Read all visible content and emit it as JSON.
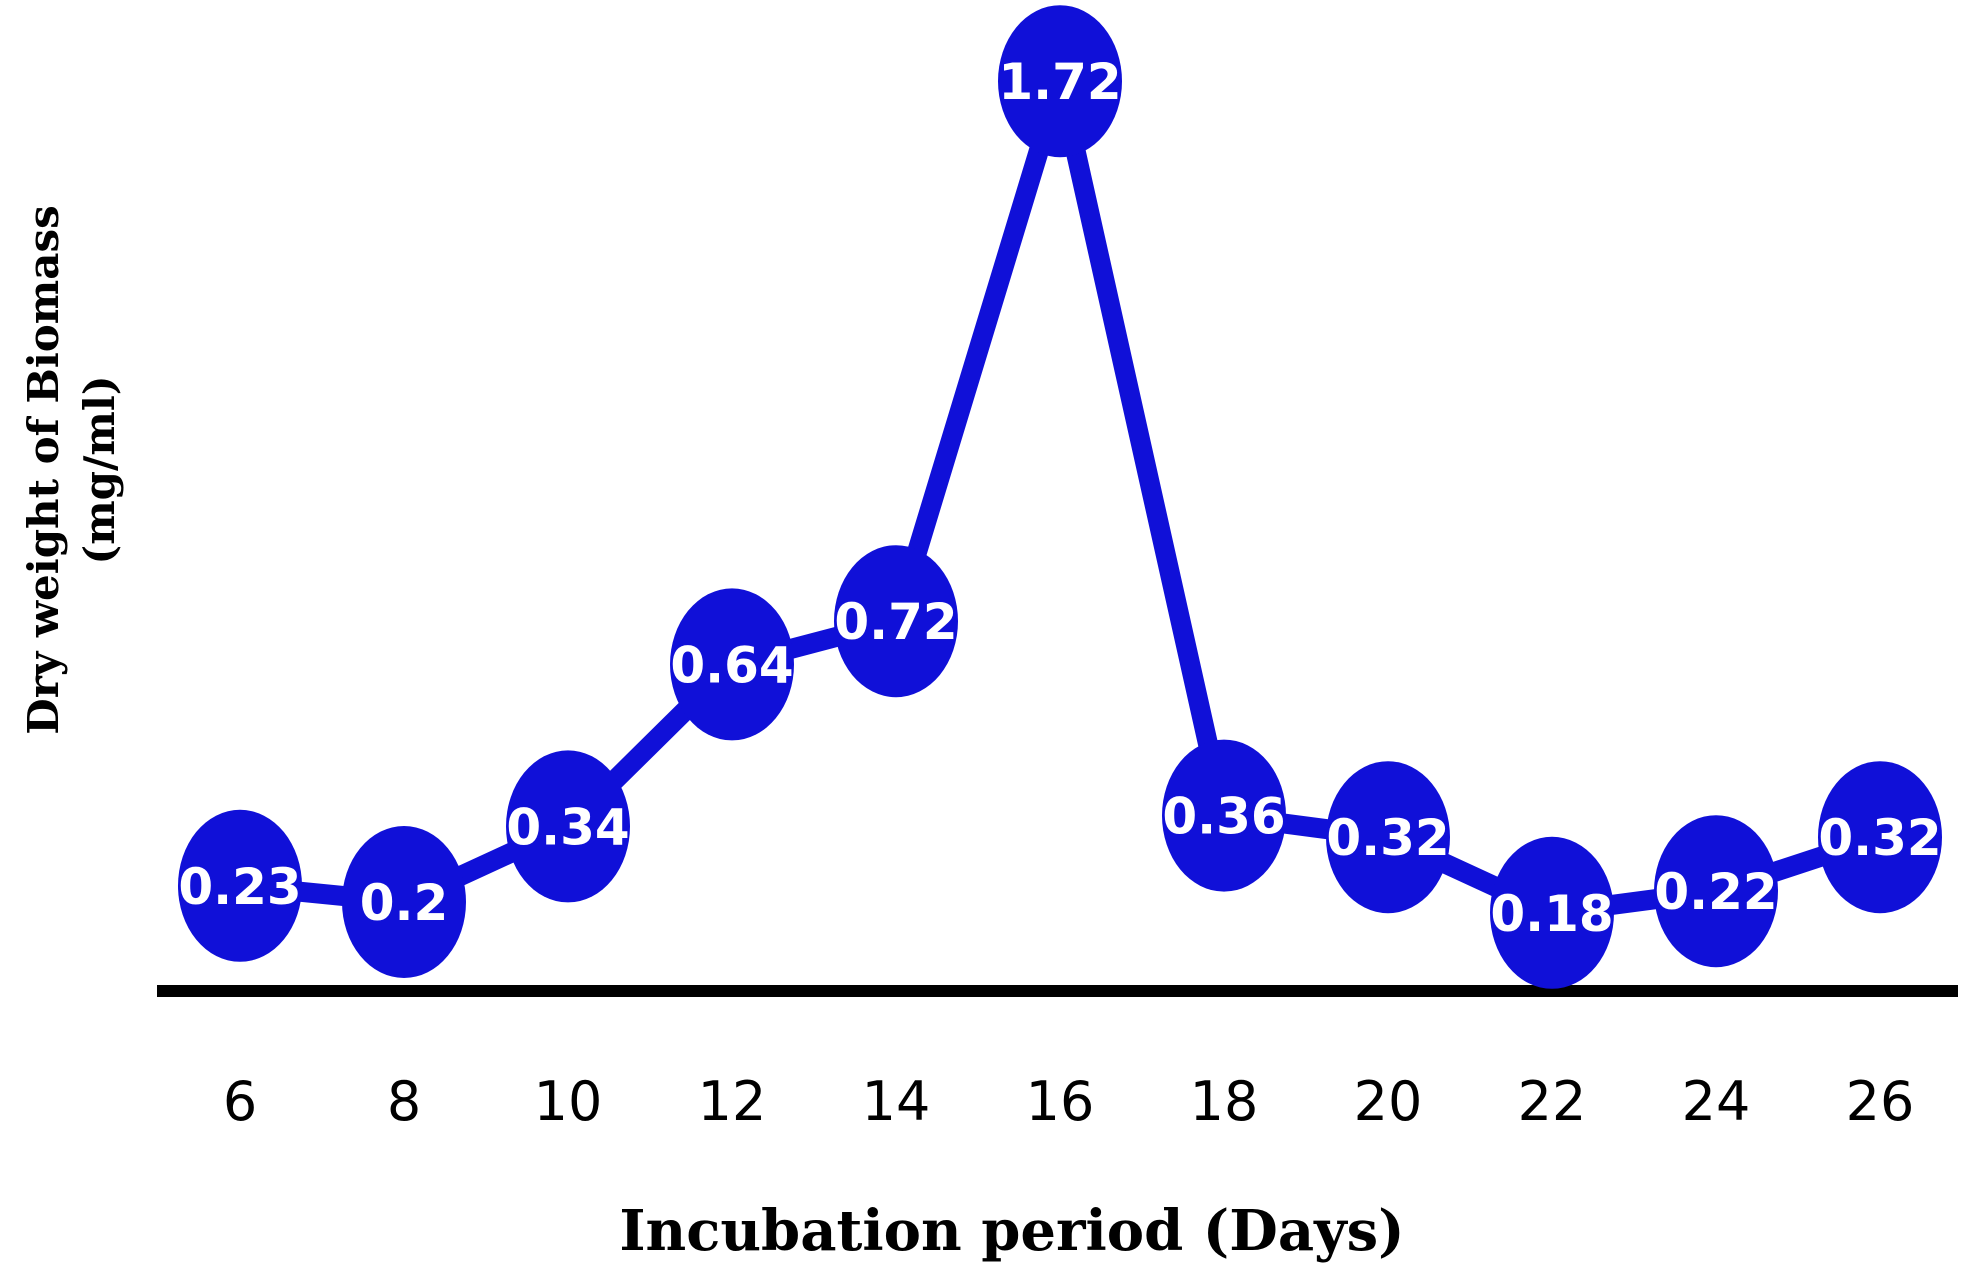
{
  "chart_data": {
    "type": "line",
    "title": "",
    "xlabel": "Incubation period (Days)",
    "ylabel_lines": [
      "Dry weight  of Biomass",
      "(mg/ml)"
    ],
    "x": [
      6,
      8,
      10,
      12,
      14,
      16,
      18,
      20,
      22,
      24,
      26
    ],
    "tick_labels": [
      "6",
      "8",
      "10",
      "12",
      "14",
      "16",
      "18",
      "20",
      "22",
      "24",
      "26"
    ],
    "series": [
      {
        "values": [
          0.23,
          0.2,
          0.34,
          0.64,
          0.72,
          1.72,
          0.36,
          0.32,
          0.18,
          0.22,
          0.32
        ],
        "data_labels": [
          "0.23",
          "0.2",
          "0.34",
          "0.64",
          "0.72",
          "1.72",
          "0.36",
          "0.32",
          "0.18",
          "0.22",
          "0.32"
        ]
      }
    ],
    "ylim": [
      0,
      1.8
    ],
    "grid": false,
    "legend": "none",
    "colors": {
      "series": "#1010d8",
      "axis": "#000000",
      "label_text": "#ffffff"
    }
  }
}
